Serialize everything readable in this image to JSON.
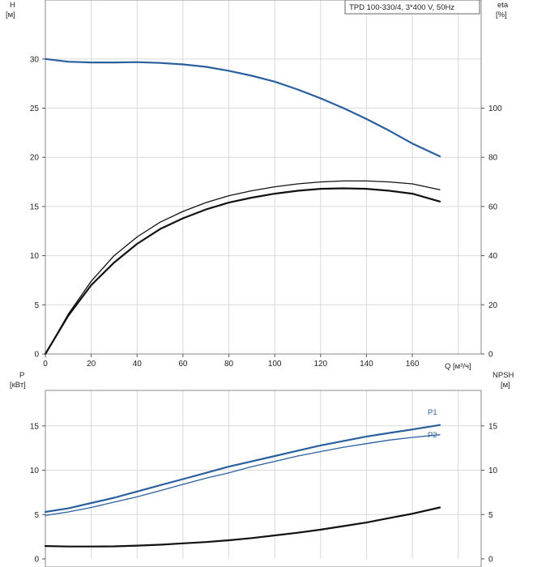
{
  "chart_data": [
    {
      "type": "line",
      "title": "TPD 100-330/4, 3*400 V, 50Hz",
      "ylabel_left": "H",
      "ylabel_left_unit": "[м]",
      "ylabel_right": "eta",
      "ylabel_right_unit": "[%]",
      "xlabel": "Q [м³/ч]",
      "x_ticks": [
        0,
        20,
        40,
        60,
        80,
        100,
        120,
        140,
        160
      ],
      "xlim": [
        0,
        190
      ],
      "ylim_left": [
        0,
        36
      ],
      "y_ticks_left": [
        0,
        5,
        10,
        15,
        20,
        25,
        30
      ],
      "ylim_right": [
        0,
        144
      ],
      "y_ticks_right": [
        0,
        20,
        40,
        60,
        80,
        100
      ],
      "grid": true,
      "series": [
        {
          "color": "#2a5f9e",
          "axis": "left",
          "x": [
            0,
            10,
            20,
            30,
            40,
            50,
            60,
            70,
            80,
            90,
            100,
            110,
            120,
            130,
            140,
            150,
            160,
            172
          ],
          "y": [
            30.0,
            29.72,
            29.65,
            29.65,
            29.68,
            29.6,
            29.45,
            29.2,
            28.8,
            28.3,
            27.7,
            26.9,
            26.0,
            25.0,
            23.9,
            22.7,
            21.4,
            20.1
          ]
        },
        {
          "color": "#111111",
          "axis": "right",
          "x": [
            0,
            10,
            20,
            30,
            40,
            50,
            60,
            70,
            80,
            90,
            100,
            110,
            120,
            130,
            140,
            150,
            160,
            172
          ],
          "y": [
            0,
            16.2,
            29.6,
            40.0,
            47.6,
            53.6,
            58.0,
            61.6,
            64.4,
            66.4,
            68.0,
            69.2,
            70.0,
            70.4,
            70.4,
            70.0,
            69.2,
            66.8
          ]
        },
        {
          "color": "#111111",
          "axis": "right",
          "x": [
            0,
            10,
            20,
            30,
            40,
            50,
            60,
            70,
            80,
            90,
            100,
            110,
            120,
            130,
            140,
            150,
            160,
            172
          ],
          "y": [
            0,
            15.6,
            28.0,
            37.2,
            44.8,
            50.8,
            55.2,
            58.8,
            61.6,
            63.6,
            65.2,
            66.4,
            67.2,
            67.4,
            67.2,
            66.4,
            65.2,
            62.0
          ]
        }
      ]
    },
    {
      "type": "line",
      "ylabel_left": "P",
      "ylabel_left_unit": "[кВт]",
      "ylabel_right": "NPSH",
      "ylabel_right_unit": "[м]",
      "xlim": [
        0,
        190
      ],
      "ylim_left": [
        0,
        19
      ],
      "y_ticks_left": [
        0,
        5,
        10,
        15
      ],
      "ylim_right": [
        0,
        19
      ],
      "y_ticks_right": [
        0,
        5,
        10,
        15
      ],
      "grid": true,
      "series": [
        {
          "name": "P1",
          "color": "#2a5f9e",
          "axis": "left",
          "x": [
            0,
            10,
            20,
            30,
            40,
            50,
            60,
            70,
            80,
            90,
            100,
            110,
            120,
            130,
            140,
            150,
            160,
            172
          ],
          "y": [
            5.3,
            5.7,
            6.3,
            6.9,
            7.6,
            8.3,
            9.0,
            9.7,
            10.4,
            11.0,
            11.6,
            12.2,
            12.8,
            13.3,
            13.8,
            14.2,
            14.6,
            15.1
          ]
        },
        {
          "name": "P2",
          "color": "#2a5f9e",
          "axis": "left",
          "x": [
            0,
            10,
            20,
            30,
            40,
            50,
            60,
            70,
            80,
            90,
            100,
            110,
            120,
            130,
            140,
            150,
            160,
            172
          ],
          "y": [
            4.9,
            5.3,
            5.8,
            6.4,
            7.0,
            7.7,
            8.4,
            9.1,
            9.7,
            10.4,
            11.0,
            11.6,
            12.1,
            12.6,
            13.0,
            13.4,
            13.7,
            14.0
          ]
        },
        {
          "color": "#111111",
          "axis": "right",
          "x": [
            0,
            10,
            20,
            30,
            40,
            50,
            60,
            70,
            80,
            90,
            100,
            110,
            120,
            130,
            140,
            150,
            160,
            172
          ],
          "y": [
            1.45,
            1.4,
            1.4,
            1.42,
            1.5,
            1.6,
            1.75,
            1.9,
            2.1,
            2.35,
            2.65,
            2.95,
            3.3,
            3.7,
            4.1,
            4.6,
            5.1,
            5.8
          ]
        }
      ]
    }
  ]
}
